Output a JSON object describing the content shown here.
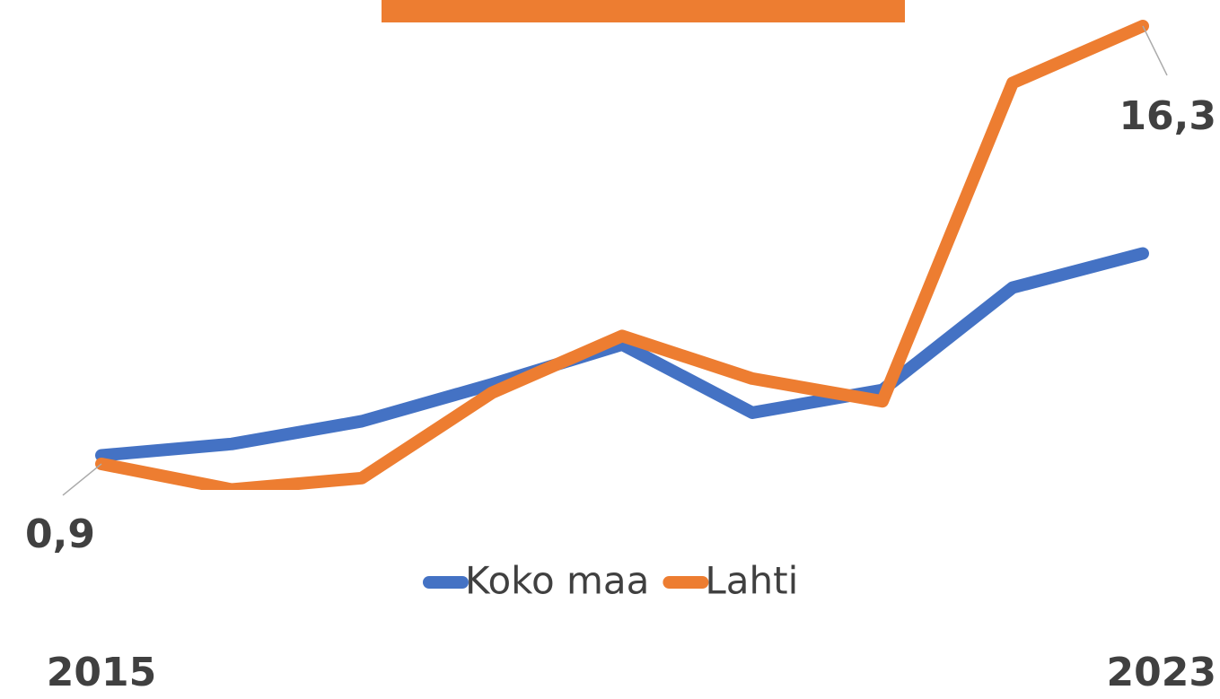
{
  "chart_data": {
    "type": "line",
    "categories": [
      "2015",
      null,
      null,
      null,
      null,
      null,
      null,
      null,
      "2023"
    ],
    "series": [
      {
        "name": "Koko maa",
        "color": "#4472c4",
        "values": [
          1.2,
          1.6,
          2.4,
          3.7,
          5.1,
          2.7,
          3.5,
          7.1,
          8.3
        ]
      },
      {
        "name": "Lahti",
        "color": "#ed7d31",
        "values": [
          0.9,
          0.0,
          0.4,
          3.4,
          5.4,
          3.9,
          3.1,
          14.3,
          16.3
        ],
        "value_labels": [
          "0,9",
          null,
          null,
          null,
          null,
          null,
          null,
          null,
          "16,3"
        ]
      }
    ],
    "ylim": [
      0,
      17
    ],
    "legend": "bottom"
  }
}
